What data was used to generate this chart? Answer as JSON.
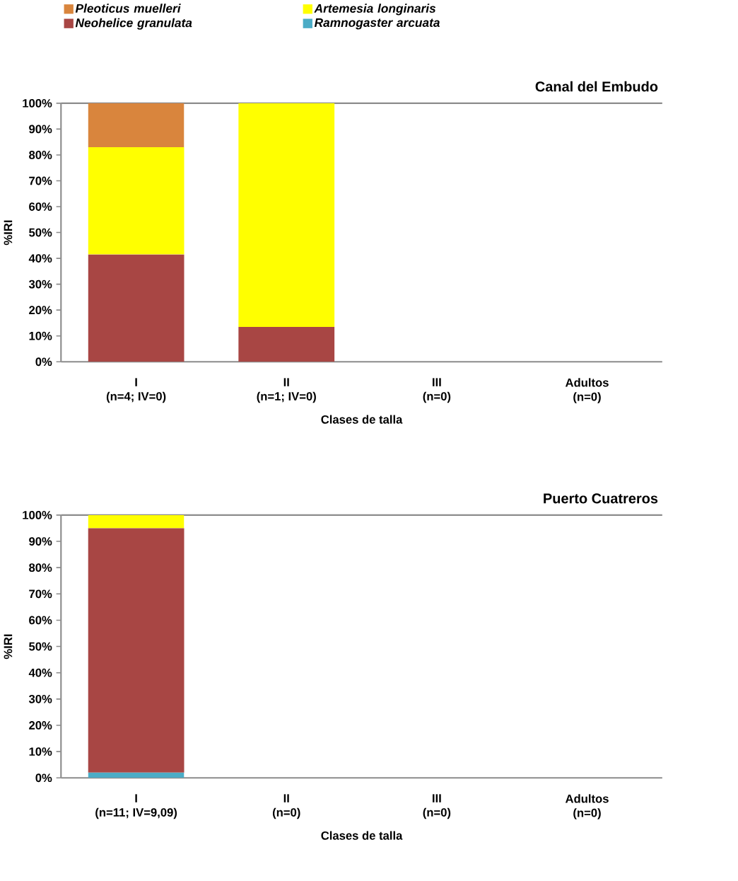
{
  "chart_data": [
    {
      "type": "bar",
      "stacked": true,
      "title": "Canal del Embudo",
      "xlabel": "Clases de talla",
      "ylabel": "%IRI",
      "categories": [
        "I\n(n=4; IV=0)",
        "II\n(n=1; IV=0)",
        "III\n(n=0)",
        "Adultos\n(n=0)"
      ],
      "series": [
        {
          "name": "Ramnogaster arcuata",
          "color": "#4bacc6",
          "values": [
            0,
            0,
            null,
            null
          ]
        },
        {
          "name": "Neohelice granulata",
          "color": "#a84644",
          "values": [
            41.5,
            13.5,
            null,
            null
          ]
        },
        {
          "name": "Artemesia longinaris",
          "color": "#ffff00",
          "values": [
            41.5,
            86.5,
            null,
            null
          ]
        },
        {
          "name": "Pleoticus muelleri",
          "color": "#d9853d",
          "values": [
            17,
            0,
            null,
            null
          ]
        }
      ],
      "ylim": [
        0,
        100
      ],
      "yticks": [
        {
          "value": 0,
          "label": "0%"
        },
        {
          "value": 10,
          "label": "10%"
        },
        {
          "value": 20,
          "label": "20%"
        },
        {
          "value": 30,
          "label": "30%"
        },
        {
          "value": 40,
          "label": "40%"
        },
        {
          "value": 50,
          "label": "50%"
        },
        {
          "value": 60,
          "label": "60%"
        },
        {
          "value": 70,
          "label": "70%"
        },
        {
          "value": 80,
          "label": "80%"
        },
        {
          "value": 90,
          "label": "90%"
        },
        {
          "value": 100,
          "label": "100%"
        }
      ],
      "legend": "top"
    },
    {
      "type": "bar",
      "stacked": true,
      "title": "Puerto Cuatreros",
      "xlabel": "Clases de talla",
      "ylabel": "%IRI",
      "categories": [
        "I\n(n=11; IV=9,09)",
        "II\n(n=0)",
        "III\n(n=0)",
        "Adultos\n(n=0)"
      ],
      "series": [
        {
          "color": "#4bacc6",
          "values": [
            2,
            null,
            null,
            null
          ]
        },
        {
          "color": "#a84644",
          "values": [
            93,
            null,
            null,
            null
          ]
        },
        {
          "color": "#ffff00",
          "values": [
            5,
            null,
            null,
            null
          ]
        }
      ],
      "ylim": [
        0,
        100
      ],
      "yticks": [
        {
          "value": 0,
          "label": "0%"
        },
        {
          "value": 10,
          "label": "10%"
        },
        {
          "value": 20,
          "label": "20%"
        },
        {
          "value": 30,
          "label": "30%"
        },
        {
          "value": 40,
          "label": "40%"
        },
        {
          "value": 50,
          "label": "50%"
        },
        {
          "value": 60,
          "label": "60%"
        },
        {
          "value": 70,
          "label": "70%"
        },
        {
          "value": 80,
          "label": "80%"
        },
        {
          "value": 90,
          "label": "90%"
        },
        {
          "value": 100,
          "label": "100%"
        }
      ]
    }
  ]
}
